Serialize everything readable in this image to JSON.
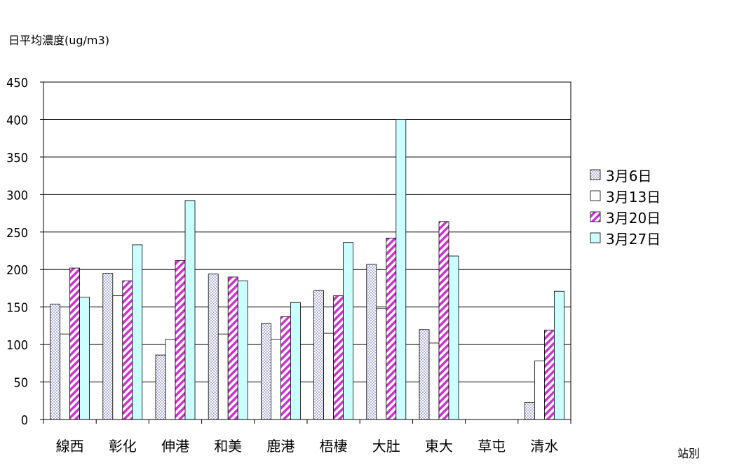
{
  "chart_data": {
    "type": "bar",
    "title": "",
    "ylabel": "日平均濃度(ug/m3)",
    "xlabel": "站別",
    "ylim": [
      0,
      450
    ],
    "yticks": [
      0,
      50,
      100,
      150,
      200,
      250,
      300,
      350,
      400,
      450
    ],
    "grid": true,
    "legend_position": "right",
    "categories": [
      "線西",
      "彰化",
      "伸港",
      "和美",
      "鹿港",
      "梧棲",
      "大肚",
      "東大",
      "草屯",
      "清水"
    ],
    "series": [
      {
        "name": "3月6日",
        "pattern": "dots",
        "color": "#c0c0ff",
        "values": [
          154,
          195,
          86,
          194,
          128,
          172,
          207,
          120,
          null,
          23
        ]
      },
      {
        "name": "3月13日",
        "pattern": "none",
        "color": "#ffffff",
        "values": [
          114,
          165,
          107,
          114,
          107,
          115,
          148,
          102,
          null,
          78
        ]
      },
      {
        "name": "3月20日",
        "pattern": "stripes",
        "color": "#cc33cc",
        "values": [
          202,
          185,
          212,
          190,
          137,
          165,
          242,
          264,
          null,
          119
        ]
      },
      {
        "name": "3月27日",
        "pattern": "none",
        "color": "#ccffff",
        "values": [
          163,
          233,
          292,
          185,
          156,
          236,
          400,
          218,
          null,
          171
        ]
      }
    ]
  }
}
